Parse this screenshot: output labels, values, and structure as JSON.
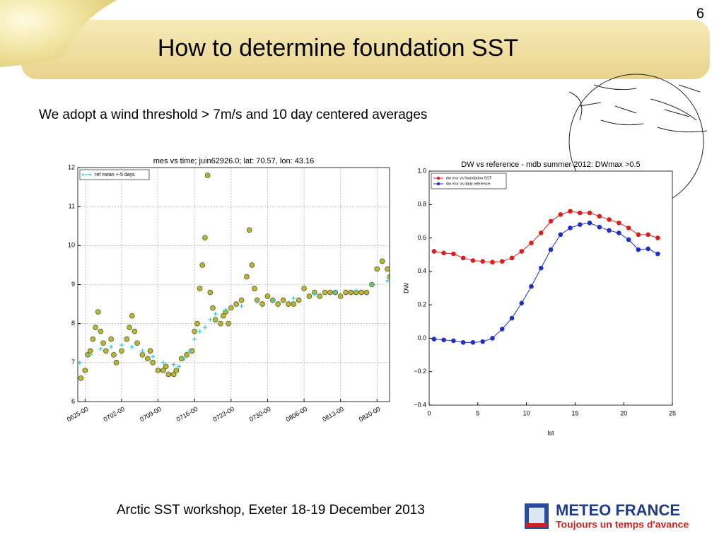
{
  "slide_number": "6",
  "title": "How to determine foundation SST",
  "subtitle": "We adopt a wind threshold > 7m/s  and 10 day centered averages",
  "footer": "Arctic SST workshop, Exeter 18-19 December 2013",
  "logo": {
    "name": "METEO FRANCE",
    "tagline": "Toujours un temps d'avance"
  },
  "chart_data": [
    {
      "type": "scatter",
      "title": "mes vs time; juin62926.0; lat: 70.57, lon: 43.16",
      "xlim": [
        -1.4,
        58.4
      ],
      "ylim": [
        6,
        12
      ],
      "xticks": [
        {
          "value": 0,
          "label": "0625-00"
        },
        {
          "value": 7,
          "label": "0702-00"
        },
        {
          "value": 14,
          "label": "0709-00"
        },
        {
          "value": 21,
          "label": "0716-00"
        },
        {
          "value": 28,
          "label": "0723-00"
        },
        {
          "value": 35,
          "label": "0730-00"
        },
        {
          "value": 42,
          "label": "0806-00"
        },
        {
          "value": 49,
          "label": "0813-00"
        },
        {
          "value": 56,
          "label": "0820-00"
        }
      ],
      "yticks": [
        6,
        7,
        8,
        9,
        10,
        11,
        12
      ],
      "grid": true,
      "legend": "upper left",
      "series": [
        {
          "color": "#b8b82e",
          "marker": "o",
          "x": [
            -0.8,
            0,
            0.5,
            1,
            1.5,
            2,
            2.5,
            3,
            3.5,
            4,
            5,
            5.5,
            6,
            7,
            8,
            8.5,
            9,
            9.5,
            10,
            11,
            12,
            12.5,
            13,
            14,
            15,
            15.5,
            16,
            17,
            17.5,
            18.5,
            19.5,
            20.5,
            21,
            21.5,
            22,
            22.5,
            23,
            23.5,
            24,
            24.5,
            25,
            26,
            26.5,
            27,
            27.5,
            28,
            29,
            30,
            31,
            31.5,
            32,
            32.5,
            33,
            34,
            35,
            36,
            37,
            38,
            39,
            40,
            41,
            42,
            43,
            44,
            45,
            46,
            47,
            48,
            49,
            50,
            51,
            52,
            53,
            54,
            55,
            56,
            57,
            58,
            58.5
          ],
          "values": [
            6.6,
            6.8,
            7.2,
            7.3,
            7.6,
            7.9,
            8.3,
            7.8,
            7.5,
            7.3,
            7.6,
            7.2,
            7.0,
            7.3,
            7.6,
            7.9,
            8.2,
            7.8,
            7.5,
            7.2,
            7.1,
            7.3,
            7.0,
            6.8,
            6.8,
            6.9,
            6.7,
            6.7,
            6.8,
            7.1,
            7.2,
            7.3,
            7.8,
            8.0,
            8.9,
            9.5,
            10.2,
            11.8,
            8.8,
            8.4,
            8.1,
            8.0,
            8.2,
            8.3,
            8.0,
            8.4,
            8.5,
            8.6,
            9.2,
            10.4,
            9.5,
            8.9,
            8.6,
            8.5,
            8.7,
            8.6,
            8.5,
            8.6,
            8.5,
            8.5,
            8.6,
            8.9,
            8.7,
            8.8,
            8.7,
            8.8,
            8.8,
            8.8,
            8.7,
            8.8,
            8.8,
            8.8,
            8.8,
            8.8,
            9.0,
            9.4,
            9.6,
            9.4,
            9.2
          ]
        },
        {
          "name": "ref mean +-5 days",
          "color": "#33cccc",
          "marker": "+",
          "x": [
            -1,
            1,
            3,
            5,
            7,
            9,
            11,
            13,
            15,
            17,
            18,
            19,
            20,
            21,
            22,
            23,
            24,
            25,
            27,
            30,
            33,
            36,
            40,
            44,
            48,
            52,
            55,
            58
          ],
          "values": [
            7.0,
            7.2,
            7.35,
            7.4,
            7.45,
            7.4,
            7.3,
            7.15,
            7.0,
            6.95,
            6.9,
            7.1,
            7.3,
            7.6,
            7.8,
            7.9,
            8.1,
            8.25,
            8.35,
            8.45,
            8.55,
            8.6,
            8.65,
            8.75,
            8.8,
            8.85,
            9.0,
            9.1
          ]
        }
      ]
    },
    {
      "type": "line",
      "title": "DW vs reference - mdb summer 2012: DWmax  >0.5",
      "xlabel": "lst",
      "ylabel": "DW",
      "xlim": [
        0,
        25
      ],
      "ylim": [
        -0.4,
        1.0
      ],
      "xticks": [
        0,
        5,
        10,
        15,
        20,
        25
      ],
      "yticks": [
        {
          "value": -0.4,
          "label": "−0.4"
        },
        {
          "value": -0.2,
          "label": "−0.2"
        },
        {
          "value": 0,
          "label": "0.0"
        },
        0.2,
        0.4,
        0.6,
        0.8,
        {
          "value": 1,
          "label": "1.0"
        }
      ],
      "grid": false,
      "legend": "upper left",
      "x": [
        0.5,
        1.5,
        2.5,
        3.5,
        4.5,
        5.5,
        6.5,
        7.5,
        8.5,
        9.5,
        10.5,
        11.5,
        12.5,
        13.5,
        14.5,
        15.5,
        16.5,
        17.5,
        18.5,
        19.5,
        20.5,
        21.5,
        22.5,
        23.5
      ],
      "series": [
        {
          "name": "dw msr vs foundation SST",
          "color": "#d62020",
          "marker": "o",
          "values": [
            0.52,
            0.51,
            0.505,
            0.48,
            0.465,
            0.46,
            0.455,
            0.46,
            0.48,
            0.52,
            0.57,
            0.63,
            0.7,
            0.74,
            0.76,
            0.75,
            0.75,
            0.73,
            0.71,
            0.69,
            0.66,
            0.62,
            0.62,
            0.6
          ]
        },
        {
          "name": "dw msr vs daily reference",
          "color": "#1f2fc0",
          "marker": "o",
          "values": [
            -0.005,
            -0.01,
            -0.015,
            -0.025,
            -0.025,
            -0.02,
            0.0,
            0.055,
            0.12,
            0.21,
            0.31,
            0.42,
            0.53,
            0.62,
            0.66,
            0.68,
            0.69,
            0.665,
            0.645,
            0.63,
            0.59,
            0.53,
            0.535,
            0.505
          ]
        }
      ]
    }
  ]
}
